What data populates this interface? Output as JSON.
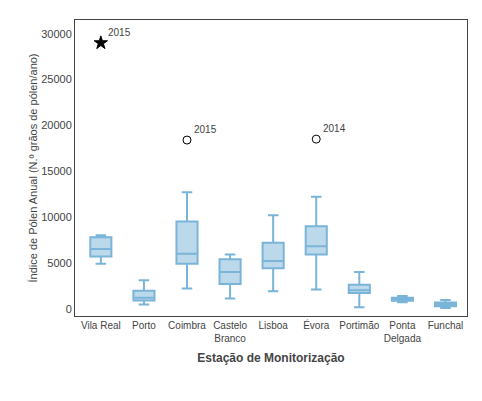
{
  "chart_data": {
    "type": "box",
    "xlabel": "Estação de Monitorização",
    "ylabel": "Índice de Pólen Anual (N.º grãos de pólen/ano)",
    "categories": [
      "Vila Real",
      "Porto",
      "Coimbra",
      "Castelo\nBranco",
      "Lisboa",
      "Évora",
      "Portimão",
      "Ponta\nDelgada",
      "Funchal"
    ],
    "q1": [
      5700,
      900,
      4900,
      2700,
      4400,
      5900,
      1700,
      870,
      270
    ],
    "median": [
      6500,
      1200,
      6000,
      4000,
      5200,
      6800,
      2000,
      1020,
      460
    ],
    "q3": [
      7800,
      1950,
      9500,
      5400,
      7200,
      9000,
      2600,
      1180,
      660
    ],
    "whislo": [
      4900,
      450,
      2200,
      1100,
      1900,
      2100,
      150,
      700,
      80
    ],
    "whishi": [
      8000,
      3100,
      12700,
      5900,
      10200,
      12200,
      4000,
      1380,
      950
    ],
    "outliers": [
      {
        "category": "Vila Real",
        "value": 29000,
        "label": "2015",
        "marker": "star"
      },
      {
        "category": "Coimbra",
        "value": 18400,
        "label": "2015",
        "marker": "circle"
      },
      {
        "category": "Évora",
        "value": 18500,
        "label": "2014",
        "marker": "circle"
      }
    ],
    "ylim": [
      -800,
      31500
    ],
    "yticks": [
      0,
      5000,
      10000,
      15000,
      20000,
      25000,
      30000
    ],
    "grid": false,
    "color": "#7ab4d8"
  }
}
